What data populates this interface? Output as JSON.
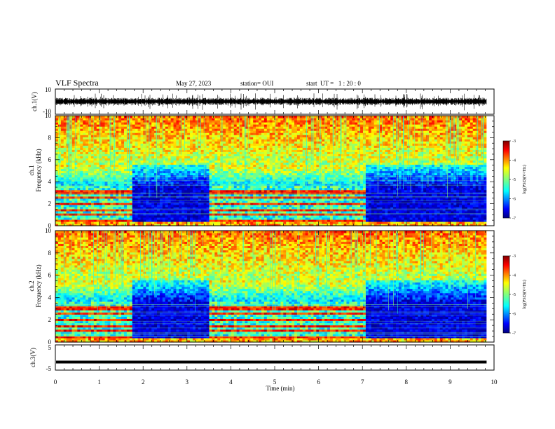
{
  "header": {
    "title": "VLF Spectra",
    "date": "May 27, 2023",
    "station": "station= OUI",
    "start": "start  UT =   1 : 20 : 0"
  },
  "chart_data": [
    {
      "name": "ch1-waveform",
      "type": "line",
      "ylabel": "ch.1(V)",
      "yticks": [
        "10",
        "-10"
      ],
      "ylim": [
        -10,
        10
      ],
      "xlim": [
        0,
        10
      ],
      "x_end_of_data": 9.83,
      "waveform": {
        "mean": 0,
        "amplitude_typical": 2.5,
        "amplitude_burst": 6
      }
    },
    {
      "name": "ch1-spectrogram",
      "type": "heatmap",
      "ylabel_line1": "ch.1",
      "ylabel_line2": "Frequency (kHz)",
      "yticks": [
        "0",
        "2",
        "4",
        "6",
        "8",
        "10"
      ],
      "ylim": [
        0,
        10
      ],
      "xlim": [
        0,
        10
      ],
      "segments_min": [
        {
          "from": 0.0,
          "to": 1.75,
          "state": "active"
        },
        {
          "from": 1.75,
          "to": 3.5,
          "state": "quiet"
        },
        {
          "from": 3.5,
          "to": 7.05,
          "state": "active"
        },
        {
          "from": 7.05,
          "to": 9.83,
          "state": "quiet"
        }
      ],
      "colorbar": {
        "label": "log(PSD)(V²/Hz)",
        "ticks": [
          "-3",
          "-4",
          "-5",
          "-6",
          "-7"
        ],
        "range": [
          -7,
          -3
        ]
      }
    },
    {
      "name": "ch2-spectrogram",
      "type": "heatmap",
      "ylabel_line1": "ch.2",
      "ylabel_line2": "Frequency (kHz)",
      "yticks": [
        "0",
        "2",
        "4",
        "6",
        "8",
        "10"
      ],
      "ylim": [
        0,
        10
      ],
      "xlim": [
        0,
        10
      ],
      "segments_min": [
        {
          "from": 0.0,
          "to": 1.75,
          "state": "active"
        },
        {
          "from": 1.75,
          "to": 3.5,
          "state": "quiet"
        },
        {
          "from": 3.5,
          "to": 7.05,
          "state": "active"
        },
        {
          "from": 7.05,
          "to": 9.83,
          "state": "quiet"
        }
      ],
      "colorbar": {
        "label": "log(PSD)(V²/Hz)",
        "ticks": [
          "-3",
          "-4",
          "-5",
          "-6",
          "-7"
        ],
        "range": [
          -7,
          -3
        ]
      }
    },
    {
      "name": "ch3-waveform",
      "type": "line",
      "ylabel": "ch.3(V)",
      "yticks": [
        "5",
        "-5"
      ],
      "ylim": [
        -5,
        5
      ],
      "xlim": [
        0,
        10
      ],
      "x_end_of_data": 9.83,
      "level": -1.8
    }
  ],
  "xaxis": {
    "label": "Time (min)",
    "ticks": [
      "0",
      "1",
      "2",
      "3",
      "4",
      "5",
      "6",
      "7",
      "8",
      "9",
      "10"
    ]
  },
  "colors": {
    "jet": [
      "#00007f",
      "#0000ff",
      "#007fff",
      "#00ffff",
      "#7fff7f",
      "#ffff00",
      "#ff7f00",
      "#ff0000",
      "#7f0000"
    ]
  }
}
